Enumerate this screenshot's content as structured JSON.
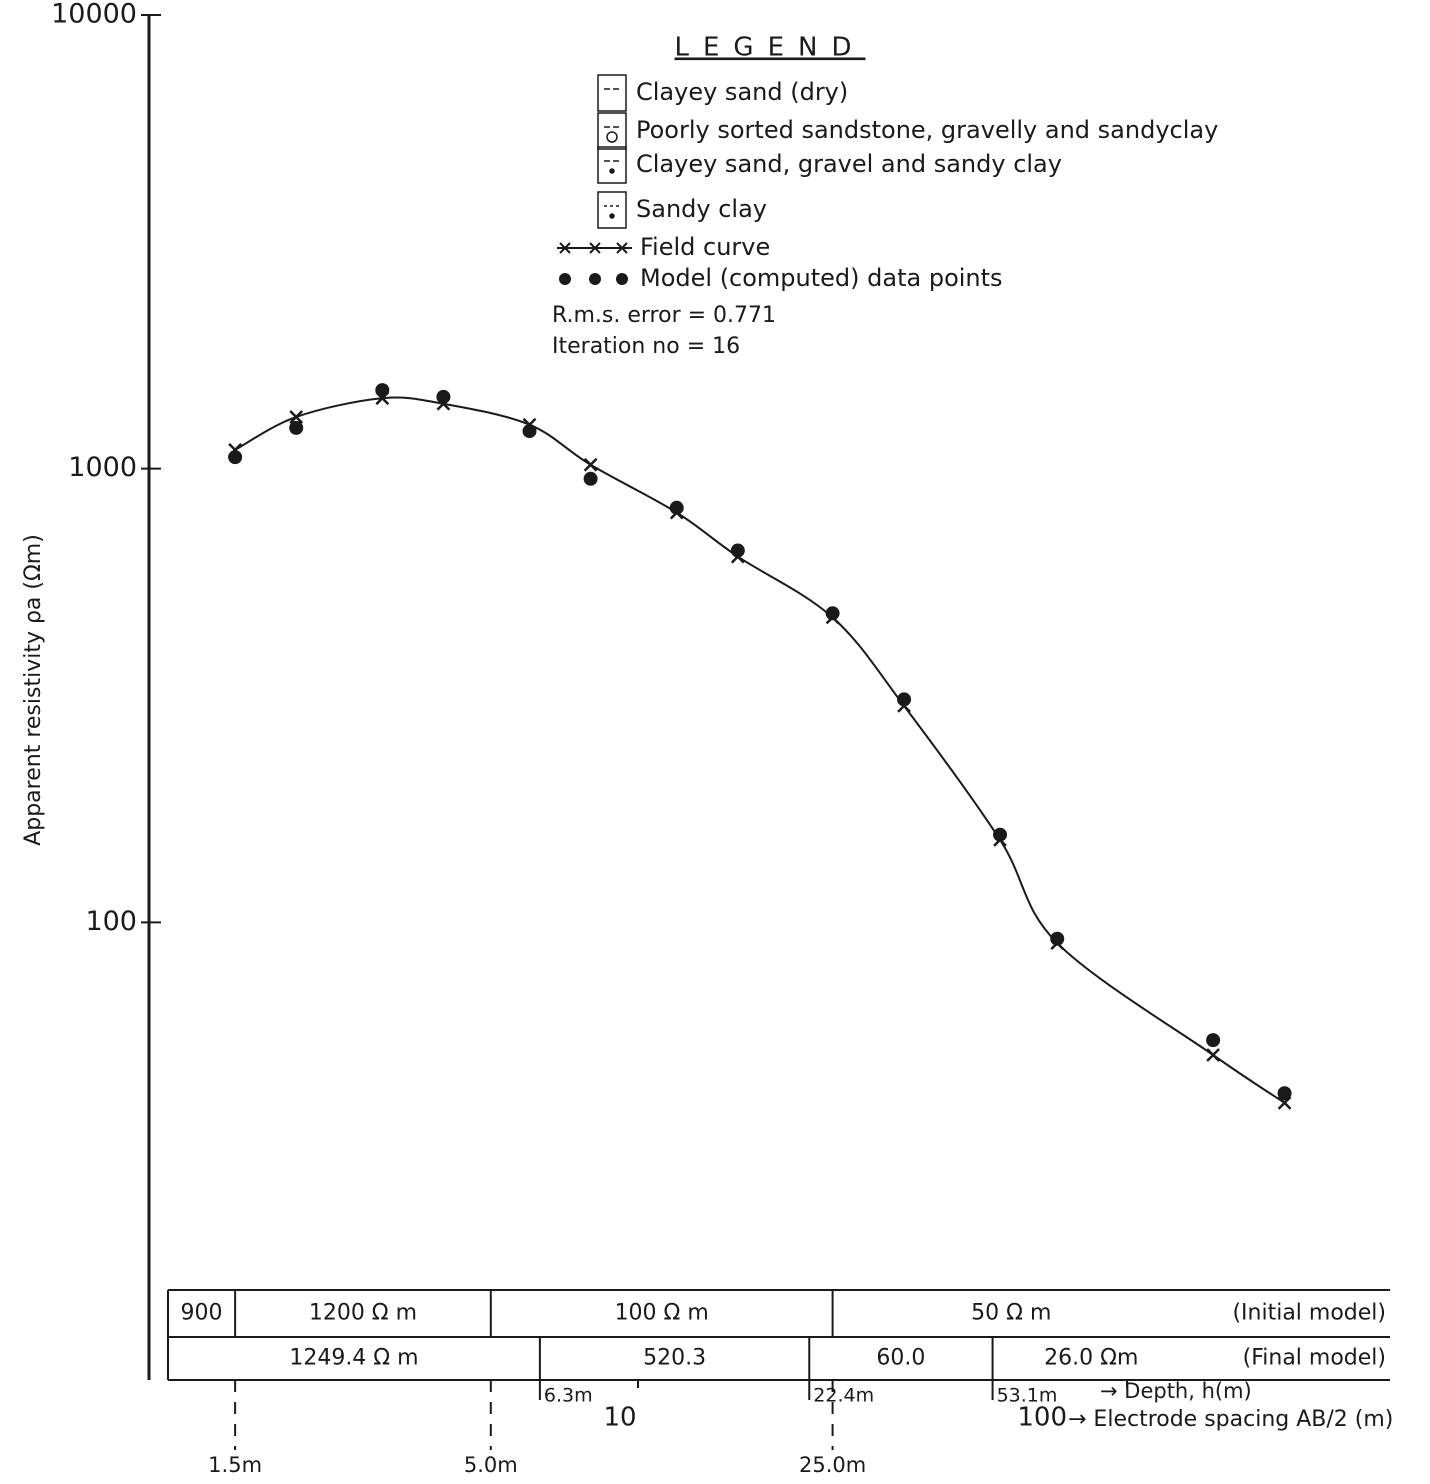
{
  "chart_data": {
    "type": "line",
    "y_label": "Apparent resistivity ρa (Ωm)",
    "x_label": "→ Electrode spacing AB/2 (m)",
    "depth_label": "→ Depth, h(m)",
    "legend_title": "LEGEND",
    "lithology": [
      "Clayey sand (dry)",
      "Poorly sorted sandstone, gravelly and sandyclay",
      "Clayey sand, gravel and sandy clay",
      "Sandy clay"
    ],
    "annotations": [
      "R.m.s. error = 0.771",
      "Iteration no = 16"
    ],
    "log_x": true,
    "log_y": true,
    "xlim": [
      1,
      400
    ],
    "ylim": [
      10,
      10000
    ],
    "xticks": [
      10,
      100
    ],
    "yticks": [
      100,
      1000,
      10000
    ],
    "x": [
      1.5,
      2,
      3,
      4,
      6,
      8,
      12,
      16,
      25,
      35,
      55,
      72,
      150,
      210
    ],
    "series": [
      {
        "name": "Field curve",
        "color": "#1a1a1a",
        "marker": "cross",
        "values": [
          1100,
          1300,
          1430,
          1390,
          1250,
          1020,
          800,
          640,
          470,
          300,
          152,
          90,
          51,
          40
        ]
      },
      {
        "name": "Model (computed) data points",
        "color": "#1a1a1a",
        "marker": "dot",
        "values": [
          1060,
          1230,
          1490,
          1440,
          1210,
          950,
          820,
          660,
          480,
          310,
          156,
          92,
          55,
          42
        ]
      }
    ],
    "initial_model": {
      "label": "(Initial model)",
      "layers": [
        "900",
        "1200 Ω m",
        "100 Ω m",
        "50 Ω m"
      ],
      "depths": [
        {
          "value": 1.5,
          "label": "1.5m"
        },
        {
          "value": 5.0,
          "label": "5.0m"
        },
        {
          "value": 25.0,
          "label": "25.0m"
        }
      ]
    },
    "final_model": {
      "label": "(Final model)",
      "layers": [
        "1249.4 Ω m",
        "520.3",
        "60.0",
        "26.0 Ωm"
      ],
      "depths": [
        {
          "value": 6.3,
          "label": "6.3m"
        },
        {
          "value": 22.4,
          "label": "22.4m"
        },
        {
          "value": 53.1,
          "label": "53.1m"
        }
      ]
    }
  }
}
